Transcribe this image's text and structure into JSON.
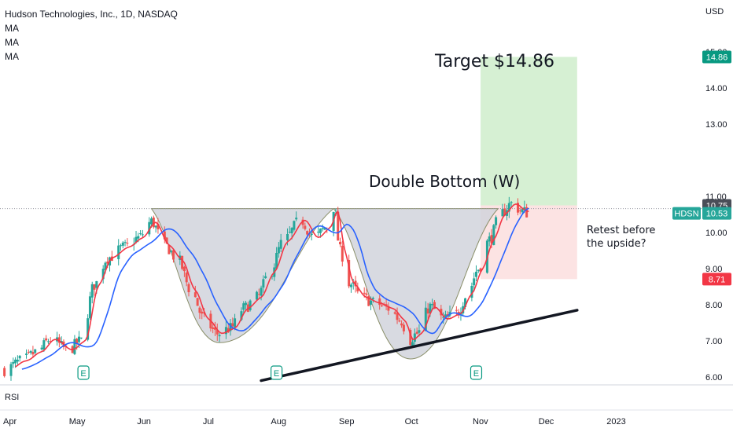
{
  "header": {
    "symbol_line": "Hudson Technologies, Inc., 1D, NASDAQ",
    "indicators": [
      "MA",
      "MA",
      "MA"
    ]
  },
  "currency": "USD",
  "rsi_label": "RSI",
  "colors": {
    "up": "#26a69a",
    "down": "#ef5350",
    "ma_fast": "#f23645",
    "ma_slow": "#2962ff",
    "trendline": "#131722",
    "target_zone": "#d6f0d3",
    "stop_zone": "#fce3e3",
    "pattern_fill": "#d1d4dc",
    "target_badge": "#089981",
    "stop_badge": "#f23645",
    "last_price_badge": "#4a4e58",
    "earnings": "#089981"
  },
  "annotations": {
    "target": "Target $14.86",
    "pattern": "Double Bottom (W)",
    "retest": "Retest before the upside?"
  },
  "chart_data": {
    "type": "candlestick",
    "symbol": "HDSN",
    "y_axis": {
      "ticks": [
        6.0,
        7.0,
        8.0,
        9.0,
        10.0,
        11.0,
        13.0,
        14.0,
        15.0
      ],
      "tick_labels": [
        "6.00",
        "7.00",
        "8.00",
        "9.00",
        "10.00",
        "11.00",
        "13.00",
        "14.00",
        "15.00"
      ],
      "range": [
        5.85,
        16.0
      ],
      "scale": "linear",
      "position": "right"
    },
    "x_axis": {
      "labels": [
        "Apr",
        "May",
        "Jun",
        "Jul",
        "Aug",
        "Sep",
        "Oct",
        "Nov",
        "Dec",
        "2023"
      ],
      "label_days": [
        0,
        30,
        61,
        91,
        122,
        153,
        183,
        214,
        244,
        275
      ]
    },
    "start_day": -3,
    "last_candle_day": 236,
    "anchors": [
      [
        -3,
        6.2
      ],
      [
        5,
        6.45
      ],
      [
        12,
        6.7
      ],
      [
        18,
        7.05
      ],
      [
        26,
        6.75
      ],
      [
        32,
        7.0
      ],
      [
        38,
        8.55
      ],
      [
        44,
        9.3
      ],
      [
        52,
        9.6
      ],
      [
        58,
        9.85
      ],
      [
        64,
        10.3
      ],
      [
        70,
        9.65
      ],
      [
        76,
        9.25
      ],
      [
        82,
        8.4
      ],
      [
        88,
        7.6
      ],
      [
        94,
        7.2
      ],
      [
        100,
        7.35
      ],
      [
        106,
        7.9
      ],
      [
        112,
        8.2
      ],
      [
        118,
        8.9
      ],
      [
        124,
        9.75
      ],
      [
        132,
        10.35
      ],
      [
        138,
        9.85
      ],
      [
        144,
        10.15
      ],
      [
        147,
        10.7
      ],
      [
        150,
        9.5
      ],
      [
        154,
        8.6
      ],
      [
        160,
        8.2
      ],
      [
        166,
        8.05
      ],
      [
        172,
        7.9
      ],
      [
        178,
        7.55
      ],
      [
        181,
        7.0
      ],
      [
        185,
        7.2
      ],
      [
        191,
        7.95
      ],
      [
        197,
        7.6
      ],
      [
        203,
        7.75
      ],
      [
        208,
        8.3
      ],
      [
        213,
        9.0
      ],
      [
        218,
        9.8
      ],
      [
        223,
        10.5
      ],
      [
        228,
        10.8
      ],
      [
        233,
        10.6
      ],
      [
        236,
        10.53
      ]
    ],
    "ma_fast_lag": 2,
    "ma_slow_lag": 9,
    "last_price": 10.53,
    "levels": {
      "target": 14.86,
      "entry": 10.75,
      "stop": 8.71,
      "neckline": 10.66
    },
    "trade_zone_days": [
      214,
      258
    ],
    "pattern_bottoms": [
      {
        "start_day": 64,
        "bottom_day": 95,
        "end_day": 147,
        "low": 6.95
      },
      {
        "start_day": 147,
        "bottom_day": 182,
        "end_day": 222,
        "low": 6.5
      }
    ],
    "trendline": {
      "days": [
        114,
        258
      ],
      "values": [
        5.9,
        7.85
      ]
    },
    "earnings_days": [
      33,
      121,
      212
    ],
    "earnings_marker": "E",
    "badges": [
      {
        "text": "14.86",
        "value": 14.86,
        "kind": "target"
      },
      {
        "text": "10.75",
        "value": 10.75,
        "kind": "entry"
      },
      {
        "text": "HDSN",
        "value": 10.53,
        "kind": "symbol"
      },
      {
        "text": "10.53",
        "value": 10.53,
        "kind": "last"
      },
      {
        "text": "8.71",
        "value": 8.71,
        "kind": "stop"
      }
    ]
  }
}
